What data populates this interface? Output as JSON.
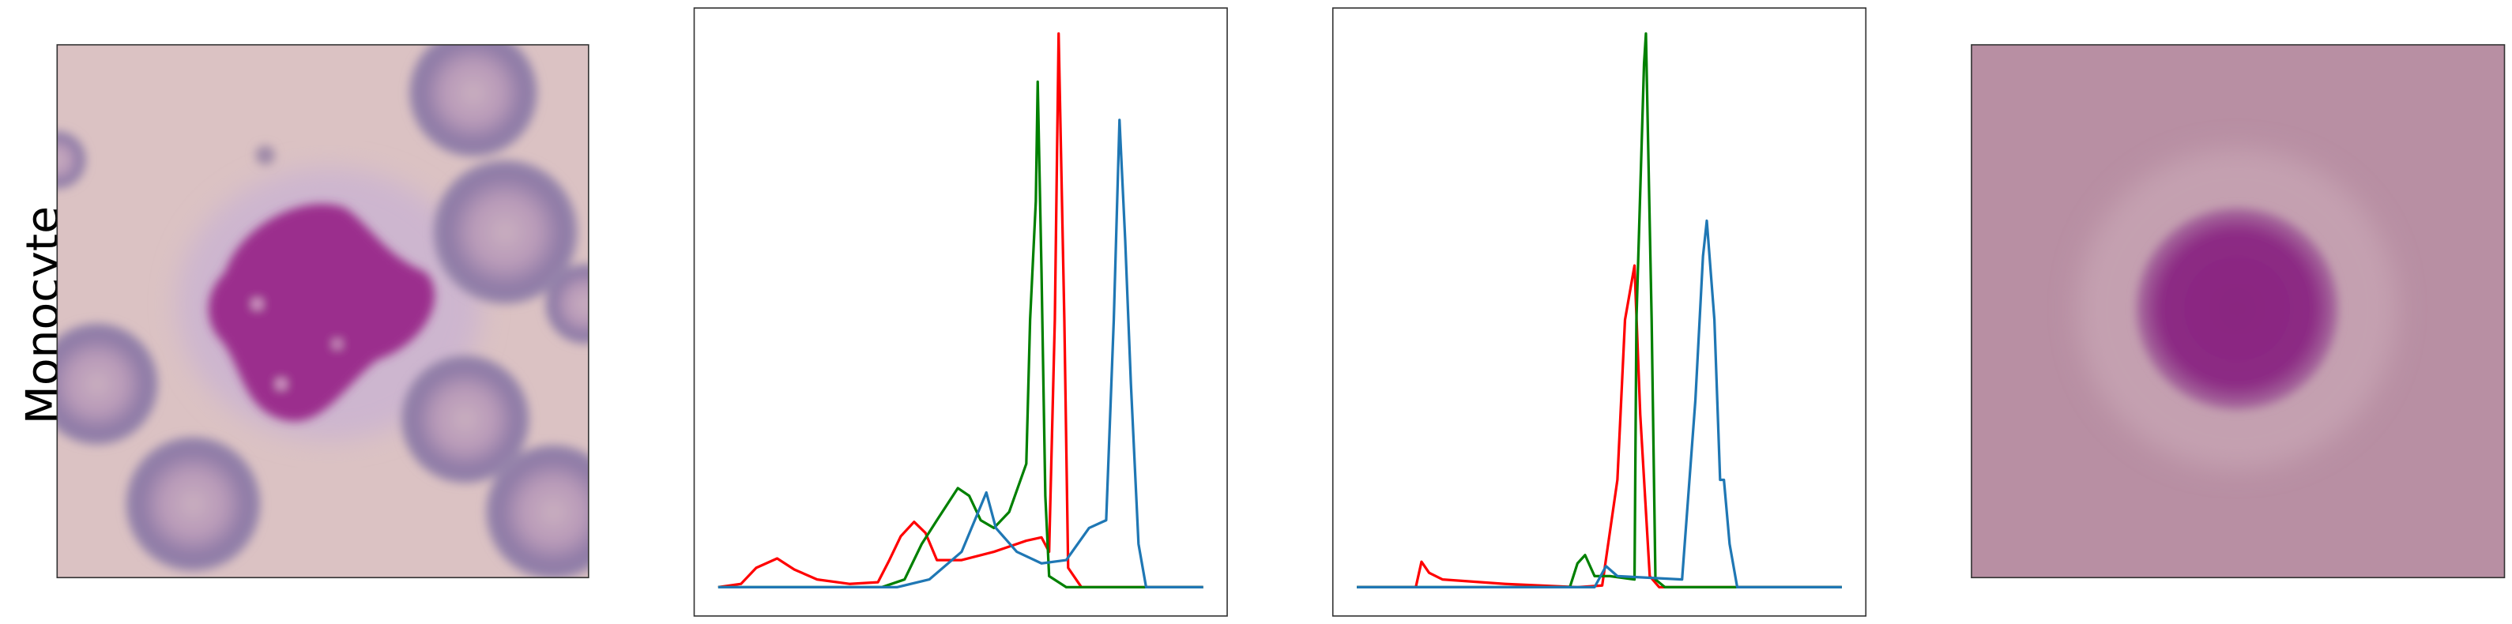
{
  "row_label": "Monocyte",
  "chart_data": [
    {
      "type": "line",
      "xlim": [
        0,
        255
      ],
      "ylim": [
        0,
        1
      ],
      "series": [
        {
          "color": "#ff0000",
          "x": [
            0,
            12,
            20,
            31,
            40,
            52,
            69,
            84,
            90,
            96,
            103,
            109,
            115,
            128,
            145,
            162,
            170,
            174,
            177,
            179,
            182,
            184,
            191,
            255
          ],
          "values": [
            0,
            0.006,
            0.035,
            0.052,
            0.032,
            0.014,
            0.006,
            0.009,
            0.049,
            0.092,
            0.118,
            0.098,
            0.049,
            0.049,
            0.064,
            0.084,
            0.09,
            0.064,
            0.483,
            1.0,
            0.483,
            0.035,
            0,
            0
          ]
        },
        {
          "color": "#008000",
          "x": [
            0,
            86,
            98,
            107,
            115,
            126,
            132,
            138,
            145,
            153,
            162,
            164,
            167,
            168,
            170,
            172,
            174,
            183,
            255
          ],
          "values": [
            0,
            0,
            0.014,
            0.078,
            0.121,
            0.179,
            0.165,
            0.121,
            0.107,
            0.136,
            0.223,
            0.483,
            0.697,
            0.913,
            0.569,
            0.165,
            0.02,
            0,
            0
          ]
        },
        {
          "color": "#1f77b4",
          "x": [
            0,
            94,
            111,
            128,
            141,
            146,
            157,
            170,
            183,
            195,
            204,
            208,
            211,
            214,
            217,
            221,
            225,
            255
          ],
          "values": [
            0,
            0,
            0.014,
            0.064,
            0.171,
            0.107,
            0.064,
            0.043,
            0.049,
            0.107,
            0.121,
            0.483,
            0.844,
            0.627,
            0.367,
            0.078,
            0,
            0
          ]
        }
      ]
    },
    {
      "type": "line",
      "xlim": [
        0,
        255
      ],
      "ylim": [
        0,
        1
      ],
      "series": [
        {
          "color": "#ff0000",
          "x": [
            0,
            31,
            34,
            38,
            45,
            78,
            116,
            129,
            137,
            141,
            146,
            149,
            154,
            159,
            255
          ],
          "values": [
            0,
            0,
            0.046,
            0.026,
            0.014,
            0.006,
            0,
            0.003,
            0.194,
            0.483,
            0.581,
            0.312,
            0.02,
            0,
            0
          ]
        },
        {
          "color": "#008000",
          "x": [
            0,
            112,
            116,
            120,
            125,
            133,
            146,
            147,
            151,
            152,
            155,
            157,
            162,
            255
          ],
          "values": [
            0,
            0,
            0.043,
            0.058,
            0.02,
            0.02,
            0.014,
            0.483,
            0.945,
            1.0,
            0.483,
            0.014,
            0,
            0
          ]
        },
        {
          "color": "#1f77b4",
          "x": [
            0,
            125,
            131,
            137,
            171,
            178,
            182,
            184,
            188,
            191,
            193,
            196,
            200,
            255
          ],
          "values": [
            0,
            0,
            0.038,
            0.02,
            0.014,
            0.338,
            0.598,
            0.662,
            0.483,
            0.194,
            0.194,
            0.078,
            0,
            0
          ]
        }
      ]
    }
  ]
}
